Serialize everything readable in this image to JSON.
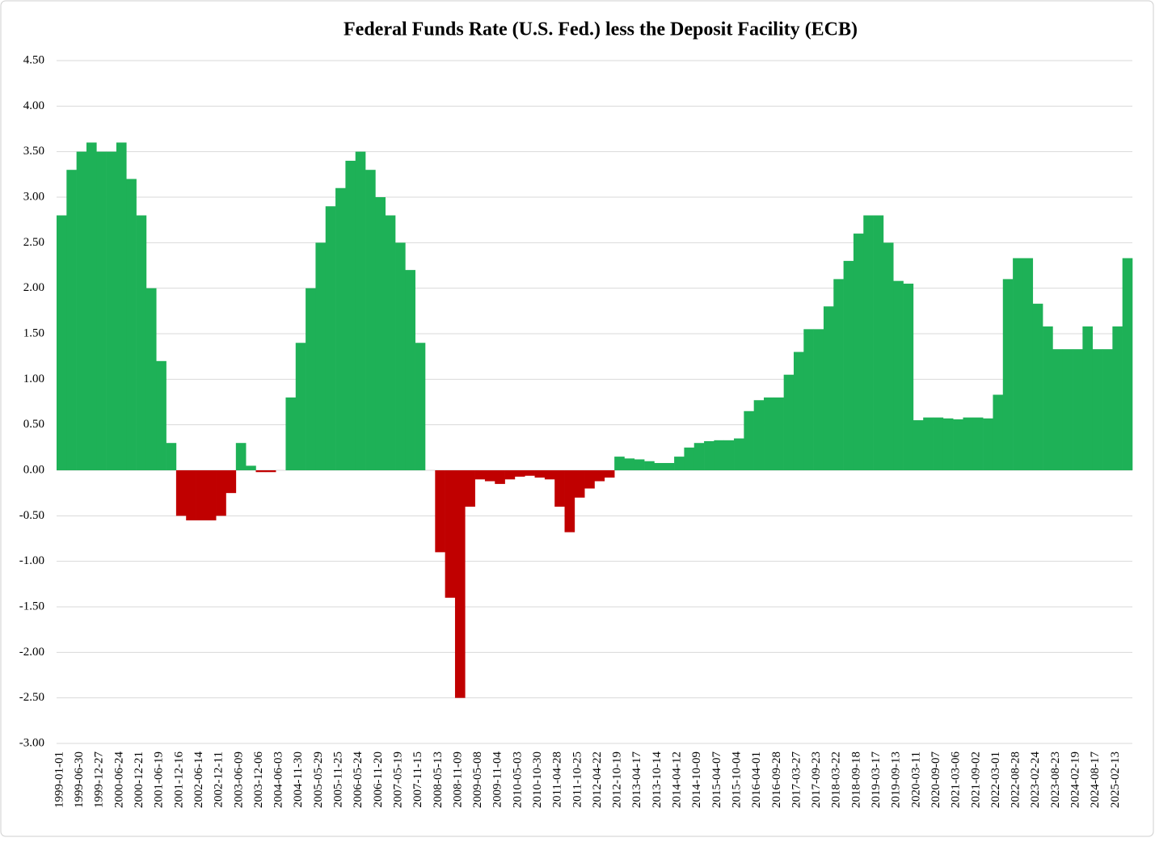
{
  "chart_data": {
    "type": "bar",
    "title": "Federal Funds Rate (U.S. Fed.) less the Deposit Facility (ECB)",
    "categories": [
      "1999-01-01",
      null,
      "1999-06-30",
      null,
      "1999-12-27",
      null,
      "2000-06-24",
      null,
      "2000-12-21",
      null,
      "2001-06-19",
      null,
      "2001-12-16",
      null,
      "2002-06-14",
      null,
      "2002-12-11",
      null,
      "2003-06-09",
      null,
      "2003-12-06",
      null,
      "2004-06-03",
      null,
      "2004-11-30",
      null,
      "2005-05-29",
      null,
      "2005-11-25",
      null,
      "2006-05-24",
      null,
      "2006-11-20",
      null,
      "2007-05-19",
      null,
      "2007-11-15",
      null,
      "2008-05-13",
      null,
      "2008-11-09",
      null,
      "2009-05-08",
      null,
      "2009-11-04",
      null,
      "2010-05-03",
      null,
      "2010-10-30",
      null,
      "2011-04-28",
      null,
      "2011-10-25",
      null,
      "2012-04-22",
      null,
      "2012-10-19",
      null,
      "2013-04-17",
      null,
      "2013-10-14",
      null,
      "2014-04-12",
      null,
      "2014-10-09",
      null,
      "2015-04-07",
      null,
      "2015-10-04",
      null,
      "2016-04-01",
      null,
      "2016-09-28",
      null,
      "2017-03-27",
      null,
      "2017-09-23",
      null,
      "2018-03-22",
      null,
      "2018-09-18",
      null,
      "2019-03-17",
      null,
      "2019-09-13",
      null,
      "2020-03-11",
      null,
      "2020-09-07",
      null,
      "2021-03-06",
      null,
      "2021-09-02",
      null,
      "2022-03-01",
      null,
      "2022-08-28",
      null,
      "2023-02-24",
      null,
      "2023-08-23",
      null,
      "2024-02-19",
      null,
      "2024-08-17",
      null,
      "2025-02-13",
      null
    ],
    "values": [
      2.8,
      3.3,
      3.5,
      3.6,
      3.5,
      3.5,
      3.6,
      3.2,
      2.8,
      2.0,
      1.2,
      0.3,
      -0.5,
      -0.55,
      -0.55,
      -0.55,
      -0.5,
      -0.25,
      0.3,
      0.05,
      -0.02,
      -0.02,
      0.0,
      0.8,
      1.4,
      2.0,
      2.5,
      2.9,
      3.1,
      3.4,
      3.5,
      3.3,
      3.0,
      2.8,
      2.5,
      2.2,
      1.4,
      0.0,
      -0.9,
      -1.4,
      -2.5,
      -0.4,
      -0.1,
      -0.12,
      -0.15,
      -0.1,
      -0.07,
      -0.06,
      -0.08,
      -0.1,
      -0.4,
      -0.68,
      -0.3,
      -0.2,
      -0.12,
      -0.08,
      0.15,
      0.13,
      0.12,
      0.1,
      0.08,
      0.08,
      0.15,
      0.25,
      0.3,
      0.32,
      0.33,
      0.33,
      0.35,
      0.65,
      0.77,
      0.8,
      0.8,
      1.05,
      1.3,
      1.55,
      1.55,
      1.8,
      2.1,
      2.3,
      2.6,
      2.8,
      2.8,
      2.5,
      2.08,
      2.05,
      0.55,
      0.58,
      0.58,
      0.57,
      0.56,
      0.58,
      0.58,
      0.57,
      0.83,
      2.1,
      2.33,
      2.33,
      1.83,
      1.58,
      1.33,
      1.33,
      1.33,
      1.58,
      1.33,
      1.33,
      1.58,
      2.33
    ],
    "color": "#1eb157",
    "negative_color": "#c00000",
    "ylim": [
      -3,
      4.5
    ],
    "yticks": [
      {
        "value": -3,
        "label": "-3.00"
      },
      {
        "value": -2.5,
        "label": "-2.50"
      },
      {
        "value": -2,
        "label": "-2.00"
      },
      {
        "value": -1.5,
        "label": "-1.50"
      },
      {
        "value": -1,
        "label": "-1.00"
      },
      {
        "value": -0.5,
        "label": "-0.50"
      },
      {
        "value": 0,
        "label": "0.00"
      },
      {
        "value": 0.5,
        "label": "0.50"
      },
      {
        "value": 1,
        "label": "1.00"
      },
      {
        "value": 1.5,
        "label": "1.50"
      },
      {
        "value": 2,
        "label": "2.00"
      },
      {
        "value": 2.5,
        "label": "2.50"
      },
      {
        "value": 3,
        "label": "3.00"
      },
      {
        "value": 3.5,
        "label": "3.50"
      },
      {
        "value": 4,
        "label": "4.00"
      },
      {
        "value": 4.5,
        "label": "4.50"
      }
    ],
    "grid": true
  }
}
